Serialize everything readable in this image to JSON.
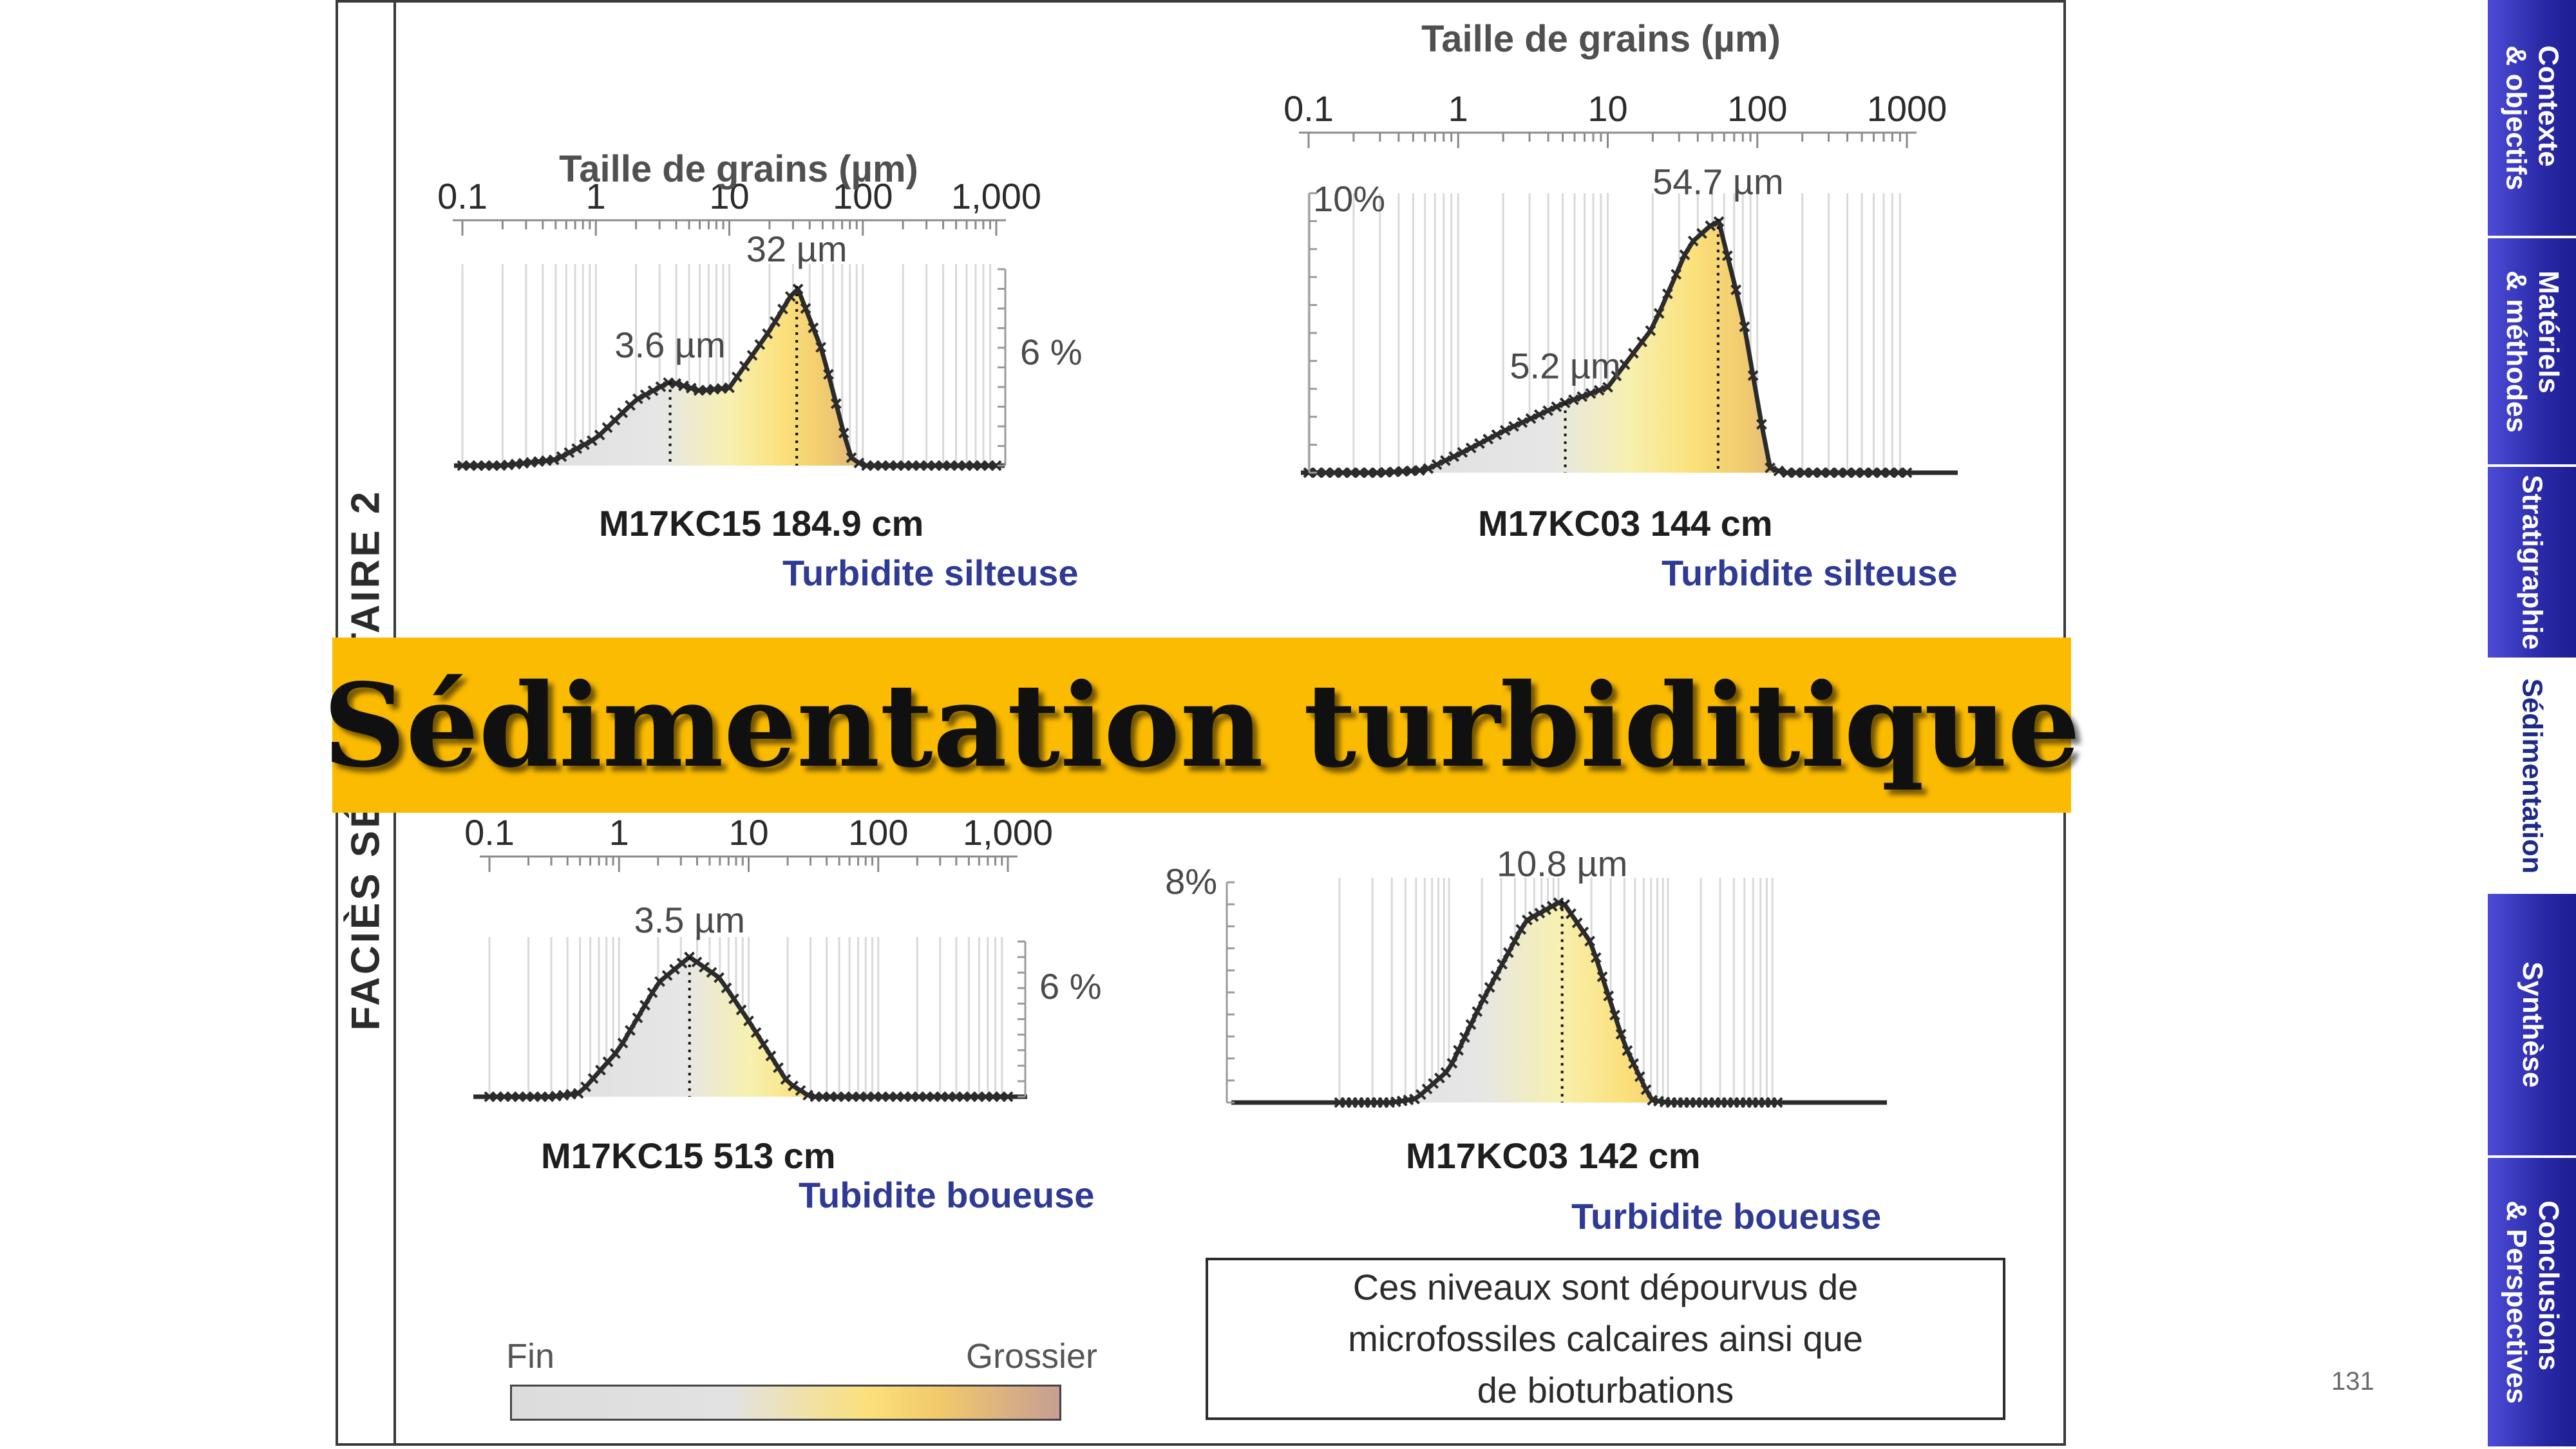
{
  "title_banner": "Sédimentation turbiditique",
  "facies_label": "FACIÈS SÉDIMENTAIRE 2",
  "nav_tabs": [
    {
      "lines": [
        "Contexte",
        "& objectifs"
      ],
      "active": false
    },
    {
      "lines": [
        "Matériels",
        "& méthodes"
      ],
      "active": false
    },
    {
      "lines": [
        "Stratigraphie"
      ],
      "active": false
    },
    {
      "lines": [
        "Sédimentation"
      ],
      "active": true
    },
    {
      "lines": [
        "Synthèse"
      ],
      "active": false
    },
    {
      "lines": [
        "Conclusions",
        "& Perspectives"
      ],
      "active": false
    }
  ],
  "note": {
    "lines": [
      "Ces niveaux sont dépourvus de",
      "microfossiles calcaires ainsi que",
      "de bioturbations"
    ]
  },
  "legend": {
    "fine": "Fin",
    "coarse": "Grossier"
  },
  "page_number": "131",
  "colors": {
    "banner": "#fbbb00",
    "nav": "#2a2aa8",
    "facies_name": "#2e3a94",
    "curve": "#2b2b2b",
    "fine": "#dcdcdc",
    "medium": "#fbe07a",
    "coarse": "#c79e93"
  },
  "chart_data": [
    {
      "type": "area",
      "id": "m17kc15_1849",
      "axis_title": "Taille de grains (µm)",
      "xscale": "log",
      "xlim": [
        0.1,
        1000
      ],
      "tick_labels": [
        "0.1",
        "1",
        "10",
        "100",
        "1,000"
      ],
      "y_scale_label": "6 %",
      "sample": "M17KC15 184.9 cm",
      "facies": "Turbidite silteuse",
      "x": [
        0.1,
        0.2,
        0.5,
        1,
        2,
        3.6,
        6,
        10,
        20,
        32,
        50,
        80,
        100,
        200,
        500,
        1000
      ],
      "y": [
        0,
        0,
        0.2,
        0.9,
        2.2,
        2.8,
        2.5,
        2.6,
        4.5,
        6,
        3.8,
        0.3,
        0,
        0,
        0,
        0
      ],
      "modes": [
        {
          "value": 3.6,
          "label": "3.6 µm"
        },
        {
          "value": 32,
          "label": "32 µm"
        }
      ]
    },
    {
      "type": "area",
      "id": "m17kc03_144",
      "axis_title": "Taille de grains (µm)",
      "xscale": "log",
      "xlim": [
        0.1,
        1000
      ],
      "tick_labels": [
        "0.1",
        "1",
        "10",
        "100",
        "1000"
      ],
      "y_scale_label": "10%",
      "sample": "M17KC03 144 cm",
      "facies": "Turbidite silteuse",
      "x": [
        0.1,
        0.3,
        0.6,
        1,
        2,
        5.2,
        10,
        20,
        35,
        54.7,
        80,
        120,
        150,
        300,
        1000
      ],
      "y": [
        0,
        0,
        0.1,
        0.7,
        1.6,
        2.7,
        3.3,
        5.6,
        8.8,
        9.8,
        6.0,
        0.2,
        0,
        0,
        0
      ],
      "modes": [
        {
          "value": 5.2,
          "label": "5.2 µm"
        },
        {
          "value": 54.7,
          "label": "54.7 µm"
        }
      ]
    },
    {
      "type": "area",
      "id": "m17kc15_513",
      "axis_title": "",
      "xscale": "log",
      "xlim": [
        0.1,
        1000
      ],
      "tick_labels": [
        "0.1",
        "1",
        "10",
        "100",
        "1,000"
      ],
      "y_scale_label": "6 %",
      "sample": "M17KC15 513 cm",
      "facies": "Tubidite boueuse",
      "x": [
        0.1,
        0.3,
        0.5,
        1,
        2,
        3.5,
        6,
        10,
        20,
        30,
        50,
        100,
        1000
      ],
      "y": [
        0,
        0,
        0.15,
        2.0,
        4.8,
        5.9,
        5.0,
        3.2,
        0.6,
        0,
        0,
        0,
        0
      ],
      "modes": [
        {
          "value": 3.5,
          "label": "3.5 µm"
        }
      ]
    },
    {
      "type": "area",
      "id": "m17kc03_142",
      "axis_title": "",
      "xscale": "log",
      "xlim": [
        0.1,
        1000
      ],
      "tick_labels": [],
      "y_scale_label": "8%",
      "sample": "M17KC03 142 cm",
      "facies": "Turbidite boueuse",
      "x": [
        0.1,
        0.3,
        0.5,
        1,
        2,
        5,
        10.8,
        20,
        40,
        70,
        100,
        300,
        1000
      ],
      "y": [
        0,
        0,
        0.15,
        1.3,
        4.0,
        7.2,
        8.0,
        6.3,
        2.3,
        0.1,
        0,
        0,
        0
      ],
      "modes": [
        {
          "value": 10.8,
          "label": "10.8 µm"
        }
      ]
    }
  ]
}
